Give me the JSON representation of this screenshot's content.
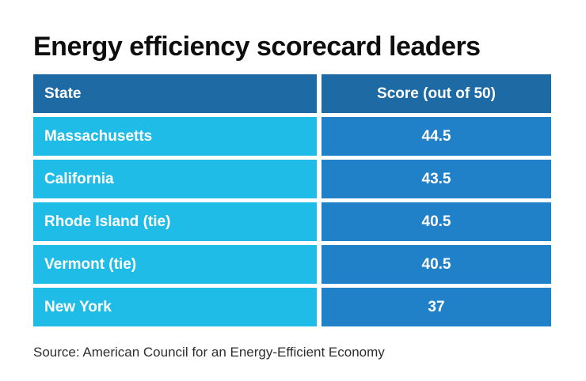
{
  "title": "Energy efficiency scorecard leaders",
  "source": "Source: American Council for an Energy-Efficient Economy",
  "table": {
    "headers": [
      "State",
      "Score (out of 50)"
    ],
    "rows": [
      {
        "state": "Massachusetts",
        "score": "44.5"
      },
      {
        "state": "California",
        "score": "43.5"
      },
      {
        "state": "Rhode Island (tie)",
        "score": "40.5"
      },
      {
        "state": "Vermont (tie)",
        "score": "40.5"
      },
      {
        "state": "New York",
        "score": "37"
      }
    ]
  },
  "colors": {
    "header_bg": "#1d6aa4",
    "state_cell_bg": "#20bce8",
    "score_cell_bg": "#2080c8",
    "cell_text": "#ffffff",
    "title_text": "#0e0e0e",
    "source_text": "#2e2e2e",
    "background": "#ffffff"
  },
  "chart_data": {
    "type": "table",
    "title": "Energy efficiency scorecard leaders",
    "columns": [
      "State",
      "Score (out of 50)"
    ],
    "categories": [
      "Massachusetts",
      "California",
      "Rhode Island (tie)",
      "Vermont (tie)",
      "New York"
    ],
    "values": [
      44.5,
      43.5,
      40.5,
      40.5,
      37
    ],
    "value_max": 50,
    "note": "Source: American Council for an Energy-Efficient Economy"
  }
}
